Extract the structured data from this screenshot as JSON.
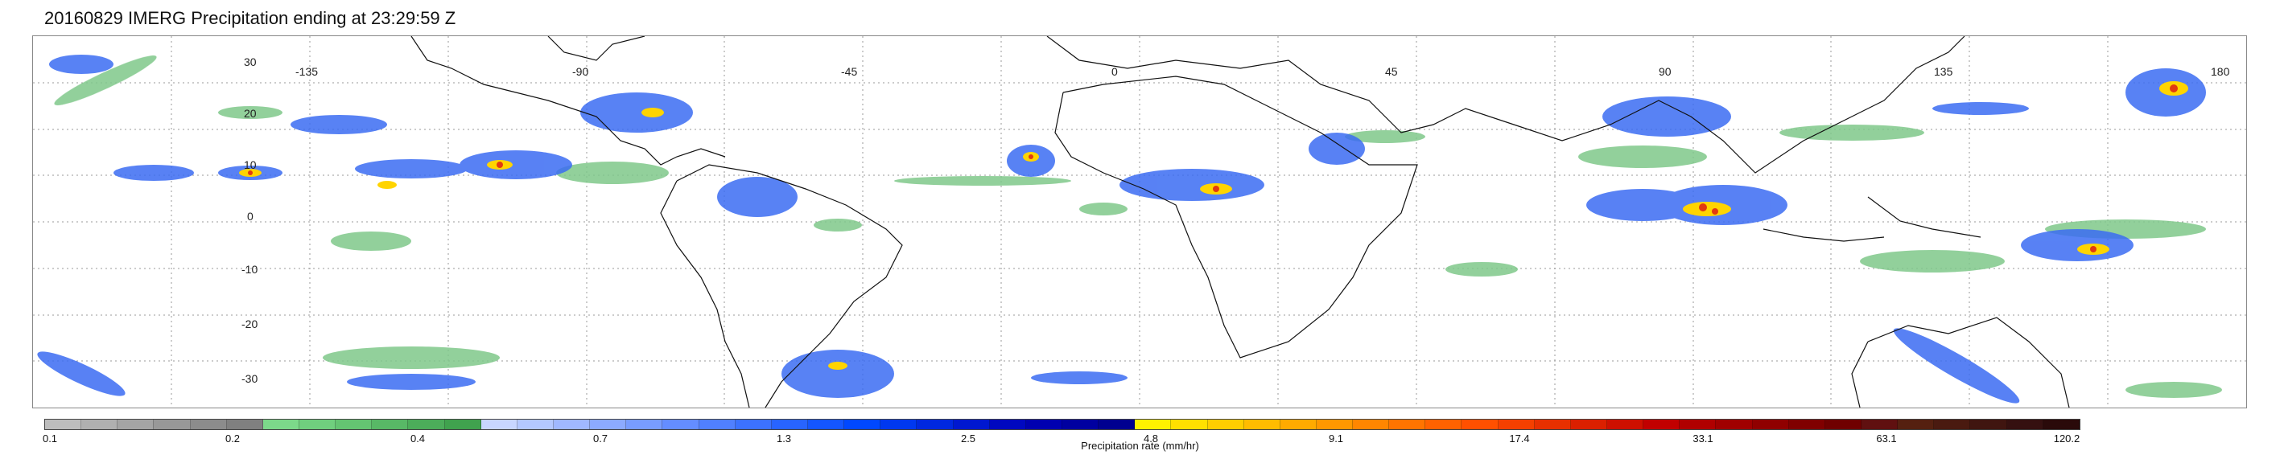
{
  "title": "20160829 IMERG Precipitation ending at 23:29:59 Z",
  "map": {
    "latitude_labels": [
      "30",
      "20",
      "10",
      "0",
      "-10",
      "-20",
      "-30"
    ],
    "longitude_labels": [
      "-135",
      "-90",
      "-45",
      "0",
      "45",
      "90",
      "135",
      "180"
    ],
    "gridlines": "dotted"
  },
  "colorbar": {
    "label": "Precipitation rate (mm/hr)",
    "tick_labels": [
      "0.1",
      "0.2",
      "0.4",
      "0.7",
      "1.3",
      "2.5",
      "4.8",
      "9.1",
      "17.4",
      "33.1",
      "63.1",
      "120.2"
    ],
    "colors": [
      "#bdbdbd",
      "#b0b0b0",
      "#a4a4a4",
      "#989898",
      "#8c8c8c",
      "#808080",
      "#7cd98a",
      "#70cf7e",
      "#64c472",
      "#58b866",
      "#4cad5a",
      "#40a24e",
      "#c8d6ff",
      "#b4c8ff",
      "#a0b8ff",
      "#8caaff",
      "#789cff",
      "#648dff",
      "#5080ff",
      "#3c72ff",
      "#2864ff",
      "#1456ff",
      "#0048ff",
      "#0038f0",
      "#0028e0",
      "#0018d0",
      "#0008c0",
      "#0000b0",
      "#0000a0",
      "#000090",
      "#fff200",
      "#ffe000",
      "#ffce00",
      "#ffbc00",
      "#ffaa00",
      "#ff9800",
      "#ff8600",
      "#ff7400",
      "#ff6200",
      "#ff5000",
      "#f54000",
      "#e83000",
      "#db2000",
      "#ce1000",
      "#c10000",
      "#b00000",
      "#a00000",
      "#900000",
      "#800000",
      "#700000",
      "#601010",
      "#552010",
      "#4a1a10",
      "#401510",
      "#351010",
      "#2a0a0a"
    ]
  }
}
